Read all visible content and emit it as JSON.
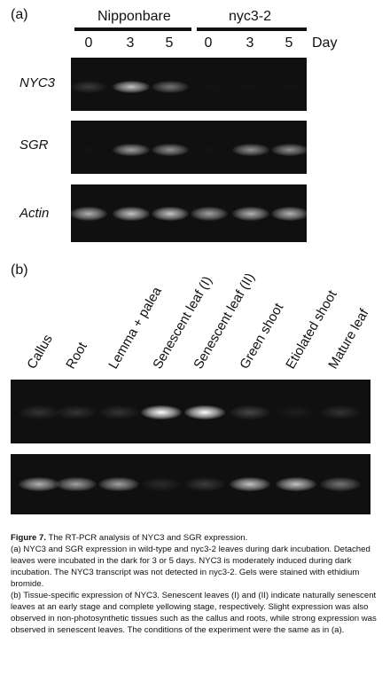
{
  "panel_a": {
    "label": "(a)",
    "groups": [
      "Nipponbare",
      "nyc3-2"
    ],
    "days": [
      "0",
      "3",
      "5",
      "0",
      "3",
      "5"
    ],
    "day_label": "Day",
    "genes": [
      "NYC3",
      "SGR",
      "Actin"
    ],
    "gels": [
      [
        0.35,
        0.85,
        0.6,
        0.0,
        0.0,
        0.0
      ],
      [
        0.0,
        0.75,
        0.7,
        0.0,
        0.7,
        0.7
      ],
      [
        0.8,
        0.85,
        0.85,
        0.75,
        0.8,
        0.8
      ]
    ]
  },
  "panel_b": {
    "label": "(b)",
    "lanes": [
      "Callus",
      "Root",
      "Lemma + palea",
      "Senescent leaf (I)",
      "Senescent leaf (II)",
      "Green shoot",
      "Etiolated shoot",
      "Mature leaf"
    ],
    "gels": [
      [
        0.3,
        0.3,
        0.3,
        1.0,
        1.0,
        0.4,
        0.15,
        0.3
      ],
      [
        0.8,
        0.75,
        0.75,
        0.25,
        0.35,
        0.85,
        0.85,
        0.6
      ]
    ]
  },
  "caption": {
    "title_bold": "Figure 7.",
    "title_rest": " The RT-PCR analysis of NYC3 and SGR expression.",
    "para_a": "(a) NYC3 and SGR expression in wild-type and nyc3-2 leaves during dark incubation. Detached leaves were incubated in the dark for 3 or 5 days. NYC3 is moderately induced during dark incubation. The NYC3 transcript was not detected in nyc3-2. Gels were stained with ethidium bromide.",
    "para_b": "(b) Tissue-specific expression of NYC3. Senescent leaves (I) and (II) indicate naturally senescent leaves at an early stage and complete yellowing stage, respectively. Slight expression was also observed in non-photosynthetic tissues such as the callus and roots, while strong expression was observed in senescent leaves. The conditions of the experiment were the same as in (a)."
  }
}
